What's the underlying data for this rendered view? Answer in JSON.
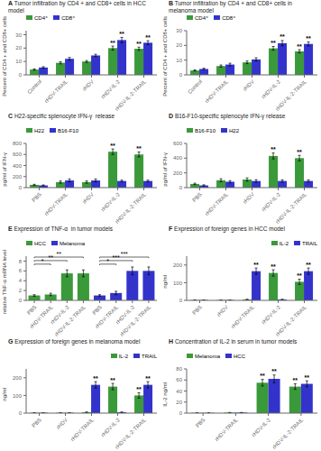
{
  "chart_data": [
    {
      "type": "bar",
      "panel_label": "A",
      "title": "Tumor infiltration by CD4 + and CD8+ cells in HCC model",
      "ylabel": "Percent of CD4 + and CD8+ cells",
      "categories": [
        "Control",
        "rHDV-TRAIL",
        "rHDV",
        "rHDV-IL-2",
        "rHDV-IL-2-TRAIL"
      ],
      "series": [
        {
          "name": "CD4⁺",
          "color": "#3a9a3a",
          "values": [
            4.0,
            9.0,
            10.0,
            20.0,
            19.5
          ],
          "errors": [
            0.5,
            0.8,
            0.7,
            1.5,
            1.2
          ],
          "annotations": [
            null,
            null,
            null,
            "**",
            "**"
          ]
        },
        {
          "name": "CD8⁺",
          "color": "#3333cc",
          "values": [
            5.5,
            12.0,
            14.5,
            26.0,
            24.0
          ],
          "errors": [
            0.6,
            1.0,
            0.9,
            2.0,
            1.5
          ],
          "annotations": [
            null,
            null,
            null,
            "**",
            "**"
          ]
        }
      ],
      "ylim": [
        0,
        33
      ],
      "yticks": [
        0,
        10,
        20,
        30
      ],
      "legend": "upper left",
      "grid": false
    },
    {
      "type": "bar",
      "panel_label": "B",
      "title": "Tumor infiltration by CD4 + and CD8+ cells in melanoma model",
      "ylabel": "Percent of CD4 + and CD8+ cells",
      "categories": [
        "Control",
        "rHDV-TRAIL",
        "rHDV",
        "rHDV-IL-2",
        "rHDV-IL-2-TRAIL"
      ],
      "series": [
        {
          "name": "CD4⁺",
          "color": "#3a9a3a",
          "values": [
            3.0,
            6.0,
            8.5,
            18.0,
            16.0
          ],
          "errors": [
            0.4,
            0.7,
            0.9,
            1.3,
            1.1
          ],
          "annotations": [
            null,
            null,
            null,
            "**",
            "**"
          ]
        },
        {
          "name": "CD8⁺",
          "color": "#3333cc",
          "values": [
            4.0,
            7.0,
            10.5,
            21.5,
            21.0
          ],
          "errors": [
            0.5,
            0.9,
            1.1,
            1.8,
            1.4
          ],
          "annotations": [
            null,
            null,
            null,
            "**",
            "**"
          ]
        }
      ],
      "ylim": [
        0,
        30
      ],
      "yticks": [
        0,
        10,
        20,
        30
      ],
      "legend": "upper left",
      "grid": false
    },
    {
      "type": "bar",
      "panel_label": "C",
      "title": "H22-specific splenocyte IFN-γ  release",
      "ylabel": "pg/ml of IFN-γ",
      "categories": [
        "PBS",
        "rHDV-TRAIL",
        "rHDV",
        "rHDV-IL-2",
        "rHDV-IL-2-TRAIL"
      ],
      "series": [
        {
          "name": "H22",
          "color": "#3a9a3a",
          "values": [
            50,
            100,
            100,
            650,
            600
          ],
          "errors": [
            10,
            20,
            20,
            50,
            45
          ],
          "annotations": [
            null,
            null,
            null,
            "**",
            "**"
          ]
        },
        {
          "name": "B16-F10",
          "color": "#3333cc",
          "values": [
            40,
            130,
            130,
            120,
            120
          ],
          "errors": [
            8,
            25,
            25,
            15,
            15
          ]
        }
      ],
      "ylim": [
        0,
        800
      ],
      "yticks": [
        0,
        200,
        400,
        600,
        800
      ],
      "legend": "upper left",
      "grid": false
    },
    {
      "type": "bar",
      "panel_label": "D",
      "title": "B16-F10-specific splenocyte IFN-γ release",
      "ylabel": "pg/ml of IFN-γ",
      "categories": [
        "PBS",
        "rHDV-TRAIL",
        "rHDV",
        "rHDV-IL-2",
        "rHDV-IL-2-TRAIL"
      ],
      "series": [
        {
          "name": "B16-F10",
          "color": "#3a9a3a",
          "values": [
            50,
            100,
            110,
            430,
            400
          ],
          "errors": [
            10,
            20,
            22,
            40,
            38
          ],
          "annotations": [
            null,
            null,
            null,
            "**",
            "**"
          ]
        },
        {
          "name": "H22",
          "color": "#3333cc",
          "values": [
            30,
            80,
            90,
            90,
            90
          ],
          "errors": [
            8,
            15,
            18,
            15,
            15
          ]
        }
      ],
      "ylim": [
        0,
        600
      ],
      "yticks": [
        0,
        200,
        400,
        600
      ],
      "legend": "upper left",
      "grid": false
    },
    {
      "type": "bar",
      "panel_label": "E",
      "title": "Expression of TNF-α  in tumor models",
      "ylabel": "relative TNF-α mRNA level",
      "categories": [
        "PBS",
        "rHDV-TRAIL",
        "rHDV-IL-2",
        "rHDV-IL-2-TRAIL",
        "PBS",
        "rHDV-TRAIL",
        "rHDV-IL-2",
        "rHDV-IL-2-TRAIL"
      ],
      "series": [
        {
          "name": "HCC",
          "color": "#3a9a3a",
          "values": [
            1.0,
            1.2,
            5.5,
            5.5,
            null,
            null,
            null,
            null
          ],
          "errors": [
            0.15,
            0.25,
            0.7,
            0.7,
            null,
            null,
            null,
            null
          ]
        },
        {
          "name": "Melanoma",
          "color": "#3333cc",
          "values": [
            null,
            null,
            null,
            null,
            1.0,
            1.5,
            6.0,
            6.0
          ],
          "errors": [
            null,
            null,
            null,
            null,
            0.15,
            0.35,
            0.8,
            0.8
          ]
        }
      ],
      "brackets": [
        {
          "from": 0,
          "to": 1,
          "text": "*"
        },
        {
          "from": 0,
          "to": 2,
          "text": "**"
        },
        {
          "from": 0,
          "to": 3,
          "text": "**"
        },
        {
          "from": 4,
          "to": 5,
          "text": "*"
        },
        {
          "from": 4,
          "to": 6,
          "text": "***"
        },
        {
          "from": 4,
          "to": 7,
          "text": "***"
        }
      ],
      "ylim": [
        0,
        9
      ],
      "yticks": [
        0,
        2,
        4,
        6,
        8
      ],
      "legend": "upper left",
      "grid": false
    },
    {
      "type": "bar",
      "panel_label": "F",
      "title": "Expression of foreign genes in HCC model",
      "ylabel": "ng/ml",
      "categories": [
        "PBS",
        "rHDV",
        "rHDV-TRAIL",
        "rHDV-IL-2",
        "rHDV-IL-2-TRAIL"
      ],
      "series": [
        {
          "name": "IL-2",
          "color": "#3a9a3a",
          "values": [
            2,
            2,
            5,
            155,
            105
          ],
          "errors": [
            0.3,
            0.3,
            1,
            18,
            15
          ],
          "annotations": [
            null,
            null,
            null,
            "**",
            "**"
          ]
        },
        {
          "name": "TRAIL",
          "color": "#3333cc",
          "values": [
            2,
            2,
            165,
            5,
            165
          ],
          "errors": [
            0.3,
            0.3,
            18,
            1,
            18
          ],
          "annotations": [
            null,
            null,
            "**",
            null,
            "**"
          ]
        }
      ],
      "ylim": [
        0,
        250
      ],
      "yticks": [
        0,
        100,
        200
      ],
      "legend": "upper right",
      "grid": false
    },
    {
      "type": "bar",
      "panel_label": "G",
      "title": "Expression of foreign genes in melanoma model",
      "ylabel": "ng/ml",
      "categories": [
        "PBS",
        "rHDV",
        "rHDV-TRAIL",
        "rHDV-IL-2",
        "rHDV-IL-2-TRAIL"
      ],
      "series": [
        {
          "name": "IL-2",
          "color": "#3a9a3a",
          "values": [
            2,
            2,
            5,
            150,
            100
          ],
          "errors": [
            0.3,
            0.3,
            1,
            18,
            15
          ],
          "annotations": [
            null,
            null,
            null,
            "**",
            "**"
          ]
        },
        {
          "name": "TRAIL",
          "color": "#3333cc",
          "values": [
            2,
            2,
            160,
            5,
            160
          ],
          "errors": [
            0.3,
            0.3,
            18,
            1,
            18
          ],
          "annotations": [
            null,
            null,
            "**",
            null,
            "**"
          ]
        }
      ],
      "ylim": [
        0,
        250
      ],
      "yticks": [
        0,
        100,
        200
      ],
      "legend": "upper right",
      "grid": false
    },
    {
      "type": "bar",
      "panel_label": "H",
      "title": "Concentration of IL-2 in serum in tumor models",
      "ylabel": "IL-2 ng/ml",
      "categories": [
        "PBS",
        "rHDV-TRAIL",
        "rHDV-IL-2",
        "rHDV-IL-2-TRAIL"
      ],
      "series": [
        {
          "name": "Melanoma",
          "color": "#3a9a3a",
          "values": [
            0.5,
            1.0,
            55,
            48
          ],
          "errors": [
            0.1,
            0.2,
            6,
            5
          ],
          "annotations": [
            null,
            null,
            "**",
            "**"
          ]
        },
        {
          "name": "HCC",
          "color": "#3333cc",
          "values": [
            0.5,
            1.0,
            62,
            53
          ],
          "errors": [
            0.1,
            0.2,
            7,
            5.5
          ],
          "annotations": [
            null,
            null,
            "**",
            "**"
          ]
        }
      ],
      "ylim": [
        0,
        80
      ],
      "yticks": [
        0,
        20,
        40,
        60,
        80
      ],
      "legend": "upper left",
      "grid": false
    }
  ]
}
